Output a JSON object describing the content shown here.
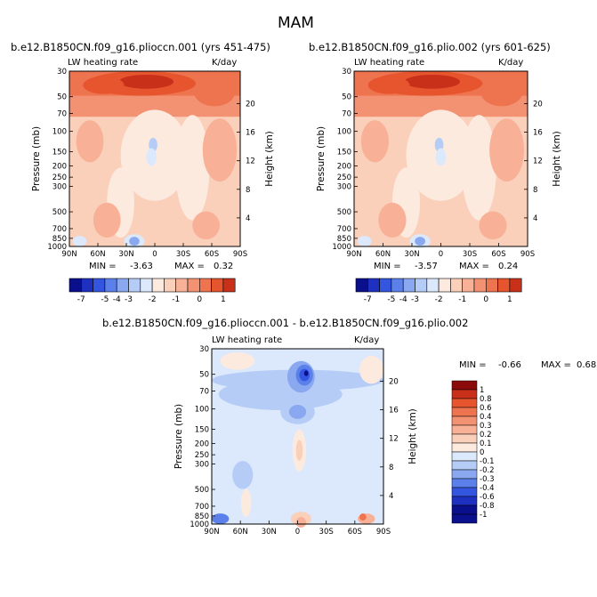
{
  "page_title": "MAM",
  "colors": {
    "neg7": "#0a0f8c",
    "neg6": "#1e30c0",
    "neg5": "#3355e0",
    "neg4": "#5b80ea",
    "neg3": "#8aa8f0",
    "neg2": "#b5ccf6",
    "neg1": "#dce8fb",
    "pos0": "#fdeadf",
    "pos1": "#fbd0bb",
    "pos2": "#f8b197",
    "pos3": "#f39272",
    "pos4": "#ee7450",
    "pos5": "#e6552e",
    "pos6": "#c9301a",
    "pos7": "#8b0a0a"
  },
  "chart_data": [
    {
      "type": "heatmap",
      "title": "b.e12.B1850CN.f09_g16.plioccn.001 (yrs 451-475)",
      "variable_label": "LW heating rate",
      "units_label": "K/day",
      "ylabel": "Pressure (mb)",
      "ylabel_right": "Height (km)",
      "x_ticks": [
        "90N",
        "60N",
        "30N",
        "0",
        "30S",
        "60S",
        "90S"
      ],
      "y_ticks": [
        "30",
        "50",
        "70",
        "100",
        "150",
        "200",
        "250",
        "300",
        "500",
        "700",
        "850",
        "1000"
      ],
      "height_ticks": [
        "20",
        "16",
        "12",
        "8",
        "4"
      ],
      "min_label": "MIN =",
      "min_value": "-3.63",
      "max_label": "MAX =",
      "max_value": "0.32",
      "colorbar_labels": [
        "-7",
        "-5",
        "-4",
        "-3",
        "-2",
        "-1",
        "0",
        "1"
      ],
      "contour_levels": [
        -7,
        -6,
        -5,
        -4,
        -3,
        -2.5,
        -2,
        -1.5,
        -1,
        -0.5,
        0,
        0.5,
        1
      ]
    },
    {
      "type": "heatmap",
      "title": "b.e12.B1850CN.f09_g16.plio.002 (yrs 601-625)",
      "variable_label": "LW heating rate",
      "units_label": "K/day",
      "ylabel": "Pressure (mb)",
      "ylabel_right": "Height (km)",
      "x_ticks": [
        "90N",
        "60N",
        "30N",
        "0",
        "30S",
        "60S",
        "90S"
      ],
      "y_ticks": [
        "30",
        "50",
        "70",
        "100",
        "150",
        "200",
        "250",
        "300",
        "500",
        "700",
        "850",
        "1000"
      ],
      "height_ticks": [
        "20",
        "16",
        "12",
        "8",
        "4"
      ],
      "min_label": "MIN =",
      "min_value": "-3.57",
      "max_label": "MAX =",
      "max_value": "0.24",
      "colorbar_labels": [
        "-7",
        "-5",
        "-4",
        "-3",
        "-2",
        "-1",
        "0",
        "1"
      ],
      "contour_levels": [
        -7,
        -6,
        -5,
        -4,
        -3,
        -2.5,
        -2,
        -1.5,
        -1,
        -0.5,
        0,
        0.5,
        1
      ]
    },
    {
      "type": "heatmap",
      "title": "b.e12.B1850CN.f09_g16.plioccn.001 - b.e12.B1850CN.f09_g16.plio.002",
      "variable_label": "LW heating rate",
      "units_label": "K/day",
      "ylabel": "Pressure (mb)",
      "ylabel_right": "Height (km)",
      "x_ticks": [
        "90N",
        "60N",
        "30N",
        "0",
        "30S",
        "60S",
        "90S"
      ],
      "y_ticks": [
        "30",
        "50",
        "70",
        "100",
        "150",
        "200",
        "250",
        "300",
        "500",
        "700",
        "850",
        "1000"
      ],
      "height_ticks": [
        "20",
        "16",
        "12",
        "8",
        "4"
      ],
      "min_label": "MIN =",
      "min_value": "-0.66",
      "max_label": "MAX =",
      "max_value": "0.68",
      "colorbar_labels": [
        "1",
        "0.8",
        "0.6",
        "0.4",
        "0.3",
        "0.2",
        "0.1",
        "0",
        "-0.1",
        "-0.2",
        "-0.3",
        "-0.4",
        "-0.6",
        "-0.8",
        "-1"
      ],
      "contour_levels": [
        -1,
        -0.8,
        -0.6,
        -0.4,
        -0.3,
        -0.2,
        -0.1,
        0,
        0.1,
        0.2,
        0.3,
        0.4,
        0.6,
        0.8,
        1
      ]
    }
  ]
}
